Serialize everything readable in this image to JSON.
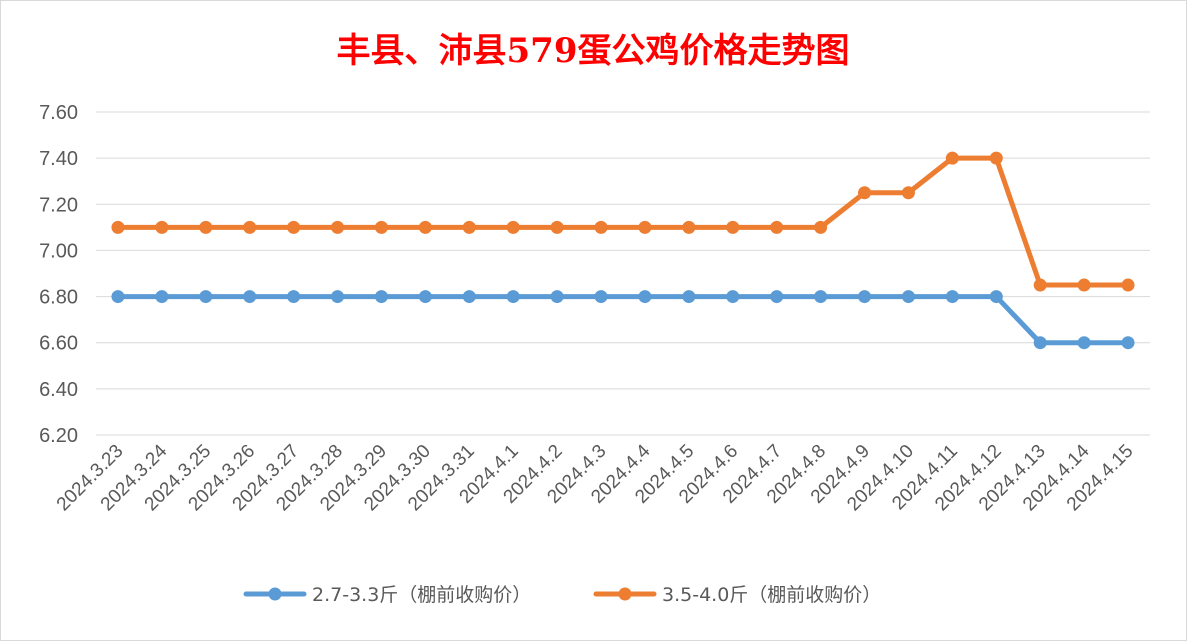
{
  "chart_data": {
    "type": "line",
    "title": "丰县、沛县579蛋公鸡价格走势图",
    "xlabel": "",
    "ylabel": "",
    "ylim": [
      6.2,
      7.6
    ],
    "yticks": [
      "6.20",
      "6.40",
      "6.60",
      "6.80",
      "7.00",
      "7.20",
      "7.40",
      "7.60"
    ],
    "ytick_values": [
      6.2,
      6.4,
      6.6,
      6.8,
      7.0,
      7.2,
      7.4,
      7.6
    ],
    "categories": [
      "2024.3.23",
      "2024.3.24",
      "2024.3.25",
      "2024.3.26",
      "2024.3.27",
      "2024.3.28",
      "2024.3.29",
      "2024.3.30",
      "2024.3.31",
      "2024.4.1",
      "2024.4.2",
      "2024.4.3",
      "2024.4.4",
      "2024.4.5",
      "2024.4.6",
      "2024.4.7",
      "2024.4.8",
      "2024.4.9",
      "2024.4.10",
      "2024.4.11",
      "2024.4.12",
      "2024.4.13",
      "2024.4.14",
      "2024.4.15"
    ],
    "grid": true,
    "legend_position": "bottom",
    "series": [
      {
        "name": "2.7-3.3斤（棚前收购价）",
        "color": "#5b9bd5",
        "values": [
          6.8,
          6.8,
          6.8,
          6.8,
          6.8,
          6.8,
          6.8,
          6.8,
          6.8,
          6.8,
          6.8,
          6.8,
          6.8,
          6.8,
          6.8,
          6.8,
          6.8,
          6.8,
          6.8,
          6.8,
          6.8,
          6.6,
          6.6,
          6.6
        ]
      },
      {
        "name": "3.5-4.0斤（棚前收购价）",
        "color": "#ed7d31",
        "values": [
          7.1,
          7.1,
          7.1,
          7.1,
          7.1,
          7.1,
          7.1,
          7.1,
          7.1,
          7.1,
          7.1,
          7.1,
          7.1,
          7.1,
          7.1,
          7.1,
          7.1,
          7.25,
          7.25,
          7.4,
          7.4,
          6.85,
          6.85,
          6.85
        ]
      }
    ]
  },
  "colors": {
    "grid": "#d9d9d9",
    "text": "#595959",
    "title": "#ff0000"
  }
}
